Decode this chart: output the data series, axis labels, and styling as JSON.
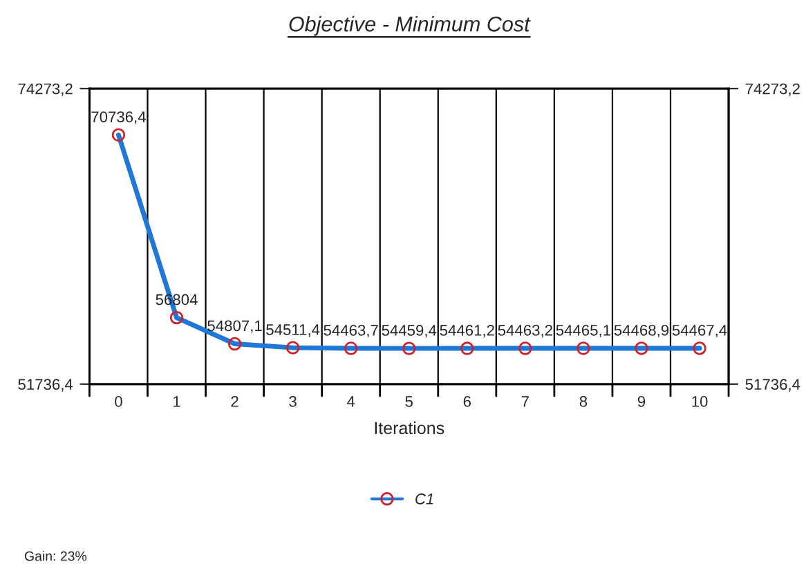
{
  "chart_data": {
    "type": "line",
    "title": "Objective - Minimum Cost",
    "xlabel": "Iterations",
    "categories": [
      "0",
      "1",
      "2",
      "3",
      "4",
      "5",
      "6",
      "7",
      "8",
      "9",
      "10"
    ],
    "series": [
      {
        "name": "C1",
        "color": "#1f78d8",
        "values": [
          70736.4,
          56804,
          54807.1,
          54511.4,
          54463.7,
          54459.4,
          54461.2,
          54463.2,
          54465.1,
          54468.9,
          54467.4
        ],
        "value_labels": [
          "70736,4",
          "56804",
          "54807,1",
          "54511,4",
          "54463,7",
          "54459,4",
          "54461,2",
          "54463,2",
          "54465,1",
          "54468,9",
          "54467,4"
        ]
      }
    ],
    "ylim": [
      51736.4,
      74273.2
    ],
    "yticks": [
      {
        "value": 51736.4,
        "label": "51736,4"
      },
      {
        "value": 74273.2,
        "label": "74273,2"
      }
    ],
    "y2lim": [
      51736.4,
      74273.2
    ],
    "y2ticks": [
      {
        "value": 51736.4,
        "label": "51736,4"
      },
      {
        "value": 74273.2,
        "label": "74273,2"
      }
    ],
    "grid": "x",
    "legend": "bottom",
    "marker": "circle",
    "line_style": "solid",
    "annotations": [
      "Gain: 23%"
    ]
  }
}
